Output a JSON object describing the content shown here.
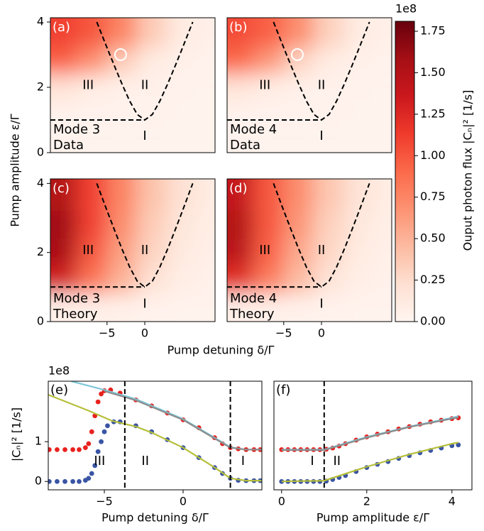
{
  "chart_data": [
    {
      "type": "heatmap",
      "panel_label": "(a)",
      "ylabel": "Pump amplitude ε/Γ",
      "mode_label": [
        "Mode 3",
        "Data"
      ],
      "region_labels": [
        "III",
        "II",
        "I"
      ],
      "x": [
        -11,
        -7,
        -3,
        1,
        5,
        9
      ],
      "y": [
        3.6,
        2.8,
        2.0,
        1.2,
        0.4
      ],
      "z": [
        [
          1.1,
          1.0,
          0.75,
          0.35,
          0.1,
          0.05
        ],
        [
          0.95,
          0.7,
          0.35,
          0.1,
          0.05,
          0.03
        ],
        [
          0.2,
          0.1,
          0.05,
          0.05,
          0.03,
          0.02
        ],
        [
          0.03,
          0.03,
          0.03,
          0.03,
          0.02,
          0.02
        ],
        [
          0.02,
          0.02,
          0.02,
          0.02,
          0.02,
          0.02
        ]
      ],
      "xlim": [
        -12.5,
        9.3
      ],
      "ylim": [
        0,
        4.13
      ],
      "yticks": [
        0,
        2,
        4
      ],
      "boundaries": [
        {
          "x": [
            -12.5,
            0
          ],
          "y": [
            1,
            1
          ]
        },
        {
          "x": [
            -6.35,
            -5,
            -4,
            -3,
            -2,
            -1,
            0,
            1,
            2,
            3,
            4,
            5,
            6.35
          ],
          "y": [
            4.0,
            3.21,
            2.64,
            2.09,
            1.58,
            1.17,
            1,
            1.17,
            1.58,
            2.09,
            2.64,
            3.21,
            4.0
          ]
        }
      ],
      "marker": {
        "x": -3.2,
        "y": 3.0
      }
    },
    {
      "type": "heatmap",
      "panel_label": "(b)",
      "mode_label": [
        "Mode 4",
        "Data"
      ],
      "region_labels": [
        "III",
        "II",
        "I"
      ],
      "x": [
        -11,
        -7,
        -3,
        1,
        5,
        9
      ],
      "y": [
        3.6,
        2.8,
        2.0,
        1.2,
        0.4
      ],
      "z": [
        [
          1.05,
          0.95,
          0.7,
          0.32,
          0.1,
          0.05
        ],
        [
          0.9,
          0.65,
          0.3,
          0.1,
          0.05,
          0.03
        ],
        [
          0.18,
          0.1,
          0.05,
          0.04,
          0.03,
          0.02
        ],
        [
          0.03,
          0.03,
          0.03,
          0.03,
          0.02,
          0.02
        ],
        [
          0.02,
          0.02,
          0.02,
          0.02,
          0.02,
          0.02
        ]
      ],
      "xlim": [
        -12.5,
        9.3
      ],
      "ylim": [
        0,
        4.13
      ],
      "boundaries": [
        {
          "x": [
            -12.5,
            0
          ],
          "y": [
            1,
            1
          ]
        },
        {
          "x": [
            -6.35,
            -5,
            -4,
            -3,
            -2,
            -1,
            0,
            1,
            2,
            3,
            4,
            5,
            6.35
          ],
          "y": [
            4.0,
            3.21,
            2.64,
            2.09,
            1.58,
            1.17,
            1,
            1.17,
            1.58,
            2.09,
            2.64,
            3.21,
            4.0
          ]
        }
      ],
      "marker": {
        "x": -3.2,
        "y": 3.0
      }
    },
    {
      "type": "heatmap",
      "panel_label": "(c)",
      "xlabel": "Pump detuning δ/Γ",
      "mode_label": [
        "Mode 3",
        "Theory"
      ],
      "region_labels": [
        "III",
        "II",
        "I"
      ],
      "x": [
        -11,
        -7,
        -3,
        1,
        5,
        9
      ],
      "y": [
        3.6,
        2.8,
        2.0,
        1.2,
        0.4
      ],
      "z": [
        [
          1.5,
          1.1,
          0.75,
          0.4,
          0.2,
          0.1
        ],
        [
          1.6,
          1.1,
          0.7,
          0.35,
          0.15,
          0.08
        ],
        [
          1.55,
          1.0,
          0.6,
          0.3,
          0.12,
          0.06
        ],
        [
          1.3,
          0.85,
          0.5,
          0.2,
          0.08,
          0.04
        ],
        [
          0.05,
          0.05,
          0.05,
          0.03,
          0.02,
          0.02
        ]
      ],
      "xlim": [
        -12.5,
        9.3
      ],
      "ylim": [
        0,
        4.13
      ],
      "yticks": [
        0,
        2,
        4
      ],
      "xticks": [
        {
          "value": -5,
          "label": "−5"
        },
        0
      ],
      "boundaries": [
        {
          "x": [
            -12.5,
            0
          ],
          "y": [
            1,
            1
          ]
        },
        {
          "x": [
            -6.35,
            -5,
            -4,
            -3,
            -2,
            -1,
            0,
            1,
            2,
            3,
            4,
            5,
            6.35
          ],
          "y": [
            4.0,
            3.21,
            2.64,
            2.09,
            1.58,
            1.17,
            1,
            1.17,
            1.58,
            2.09,
            2.64,
            3.21,
            4.0
          ]
        }
      ]
    },
    {
      "type": "heatmap",
      "panel_label": "(d)",
      "mode_label": [
        "Mode 4",
        "Theory"
      ],
      "region_labels": [
        "III",
        "II",
        "I"
      ],
      "x": [
        -11,
        -7,
        -3,
        1,
        5,
        9
      ],
      "y": [
        3.6,
        2.8,
        2.0,
        1.2,
        0.4
      ],
      "z": [
        [
          1.4,
          1.0,
          0.7,
          0.38,
          0.18,
          0.09
        ],
        [
          1.5,
          1.0,
          0.65,
          0.32,
          0.14,
          0.07
        ],
        [
          1.45,
          0.95,
          0.55,
          0.28,
          0.11,
          0.05
        ],
        [
          1.2,
          0.8,
          0.45,
          0.18,
          0.07,
          0.04
        ],
        [
          0.05,
          0.05,
          0.04,
          0.03,
          0.02,
          0.02
        ]
      ],
      "xlim": [
        -12.5,
        9.3
      ],
      "ylim": [
        0,
        4.13
      ],
      "xticks": [
        {
          "value": -5,
          "label": "−5"
        },
        0
      ],
      "boundaries": [
        {
          "x": [
            -12.5,
            0
          ],
          "y": [
            1,
            1
          ]
        },
        {
          "x": [
            -6.35,
            -5,
            -4,
            -3,
            -2,
            -1,
            0,
            1,
            2,
            3,
            4,
            5,
            6.35
          ],
          "y": [
            4.0,
            3.21,
            2.64,
            2.09,
            1.58,
            1.17,
            1,
            1.17,
            1.58,
            2.09,
            2.64,
            3.21,
            4.0
          ]
        }
      ]
    },
    {
      "type": "colorbar",
      "colormap": "Reds",
      "label": "Ouput photon flux |Cₙ|² [1/s]",
      "offset_label": "1e8",
      "clim": [
        0,
        1.81
      ],
      "ticks": [
        {
          "value": 0,
          "label": "0.00"
        },
        0.25,
        {
          "value": 0.5,
          "label": "0.50"
        },
        0.75,
        {
          "value": 1,
          "label": "1.00"
        },
        1.25,
        {
          "value": 1.5,
          "label": "1.50"
        },
        1.75
      ]
    },
    {
      "type": "line",
      "panel_label": "(e)",
      "xlabel": "Pump detuning δ/Γ",
      "ylabel": "|Cₙ|² [1/s]",
      "offset_label": "1e8",
      "region_labels": [
        "III",
        "II",
        "I"
      ],
      "xlim": [
        -8.56,
        5.0
      ],
      "ylim": [
        -0.21,
        2.52
      ],
      "xticks": [
        {
          "value": -5,
          "label": "−5"
        },
        0
      ],
      "yticks": [
        0,
        1
      ],
      "vlines": [
        -3.7,
        3.0
      ],
      "series": [
        {
          "style": "dots",
          "color": "#e8211e",
          "x": [
            -8.5,
            -8,
            -7.5,
            -7,
            -6.6,
            -6.2,
            -6.0,
            -5.8,
            -5.6,
            -5.4,
            -5.2,
            -5.0,
            -4.6,
            -4.0,
            -3.0,
            -2.0,
            -1.0,
            0,
            1,
            2,
            2.5,
            3,
            3.5,
            4,
            4.5,
            4.9
          ],
          "values": [
            0.8,
            0.8,
            0.8,
            0.8,
            0.8,
            0.85,
            0.95,
            1.25,
            1.65,
            2.0,
            2.2,
            2.28,
            2.3,
            2.22,
            2.05,
            1.9,
            1.72,
            1.55,
            1.35,
            1.1,
            0.95,
            0.85,
            0.82,
            0.8,
            0.8,
            0.8
          ]
        },
        {
          "style": "dots",
          "color": "#3a55a4",
          "x": [
            -8.5,
            -8,
            -7.5,
            -7,
            -6.6,
            -6.2,
            -6.0,
            -5.8,
            -5.6,
            -5.4,
            -5.2,
            -5.0,
            -4.8,
            -4.4,
            -4.0,
            -3.0,
            -2.0,
            -1.0,
            0,
            1,
            2,
            2.5,
            3,
            3.5,
            4,
            4.5,
            4.9
          ],
          "values": [
            0,
            0,
            0,
            0,
            0,
            0.03,
            0.08,
            0.2,
            0.4,
            0.75,
            1.0,
            1.25,
            1.4,
            1.5,
            1.5,
            1.4,
            1.25,
            1.05,
            0.85,
            0.6,
            0.35,
            0.2,
            0.08,
            0.03,
            0.02,
            0.02,
            0.02
          ]
        },
        {
          "style": "line",
          "color": "#7fc8d8",
          "x": [
            -7.1,
            -5,
            -3,
            0,
            2,
            3,
            4,
            5
          ],
          "values": [
            2.52,
            2.3,
            2.07,
            1.57,
            1.1,
            0.86,
            0.8,
            0.8
          ]
        },
        {
          "style": "line",
          "color": "#8c8c8c",
          "x": [
            -5,
            -3,
            0,
            2,
            3,
            4,
            5
          ],
          "values": [
            2.27,
            2.04,
            1.55,
            1.08,
            0.85,
            0.8,
            0.8
          ]
        },
        {
          "style": "line",
          "color": "#b5bf3a",
          "x": [
            -8.56,
            -6,
            -4.5,
            -3,
            -2,
            0,
            2,
            3,
            4,
            5
          ],
          "values": [
            2.18,
            1.78,
            1.52,
            1.38,
            1.23,
            0.85,
            0.35,
            0.08,
            0.02,
            0.02
          ]
        }
      ]
    },
    {
      "type": "line",
      "panel_label": "(f)",
      "xlabel": "Pump amplitude ε/Γ",
      "region_labels": [
        "I",
        "II"
      ],
      "xlim": [
        -0.18,
        4.47
      ],
      "ylim": [
        -0.21,
        2.52
      ],
      "xticks": [
        0,
        2,
        4
      ],
      "vlines": [
        1.0
      ],
      "series": [
        {
          "style": "dots",
          "color": "#e8211e",
          "x": [
            0,
            0.15,
            0.3,
            0.45,
            0.6,
            0.75,
            0.9,
            1.05,
            1.2,
            1.35,
            1.5,
            1.75,
            2,
            2.25,
            2.5,
            2.75,
            3,
            3.25,
            3.5,
            3.75,
            4,
            4.15
          ],
          "values": [
            0.8,
            0.8,
            0.8,
            0.8,
            0.8,
            0.8,
            0.8,
            0.81,
            0.84,
            0.89,
            0.95,
            1.04,
            1.12,
            1.19,
            1.25,
            1.32,
            1.38,
            1.44,
            1.5,
            1.54,
            1.58,
            1.6
          ]
        },
        {
          "style": "dots",
          "color": "#3a55a4",
          "x": [
            0,
            0.15,
            0.3,
            0.45,
            0.6,
            0.75,
            0.9,
            1.05,
            1.2,
            1.35,
            1.5,
            1.75,
            2,
            2.25,
            2.5,
            2.75,
            3,
            3.25,
            3.5,
            3.75,
            4,
            4.15
          ],
          "values": [
            0,
            0,
            0,
            0,
            0,
            0,
            0,
            0.01,
            0.05,
            0.1,
            0.15,
            0.25,
            0.35,
            0.43,
            0.5,
            0.58,
            0.65,
            0.72,
            0.78,
            0.84,
            0.9,
            0.92
          ]
        },
        {
          "style": "line",
          "color": "#7fc8d8",
          "x": [
            0,
            1,
            2,
            3,
            4,
            4.15
          ],
          "values": [
            0.8,
            0.8,
            1.12,
            1.38,
            1.6,
            1.64
          ]
        },
        {
          "style": "line",
          "color": "#8c8c8c",
          "x": [
            0,
            1,
            2,
            3,
            4,
            4.15
          ],
          "values": [
            0.79,
            0.79,
            1.1,
            1.37,
            1.58,
            1.61
          ]
        },
        {
          "style": "line",
          "color": "#b5bf3a",
          "x": [
            0,
            1,
            2,
            3,
            4,
            4.15
          ],
          "values": [
            0.0,
            0.02,
            0.37,
            0.68,
            0.95,
            0.98
          ]
        }
      ]
    }
  ]
}
